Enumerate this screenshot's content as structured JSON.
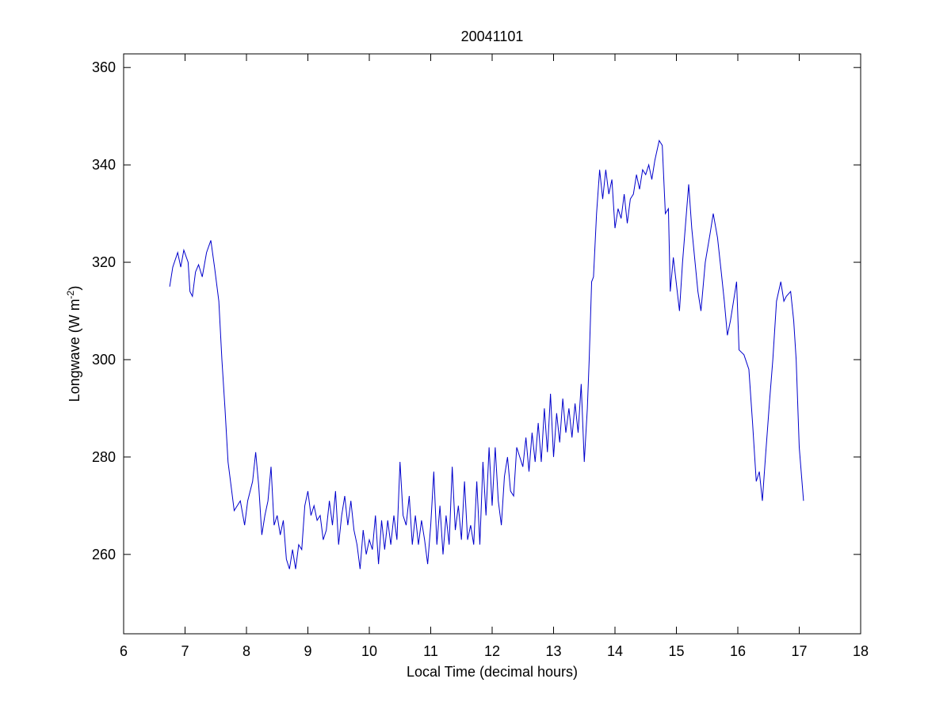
{
  "chart_data": {
    "type": "line",
    "title": "20041101",
    "xlabel": "Local Time (decimal hours)",
    "ylabel": [
      "Longwave (W m",
      "-2",
      ")"
    ],
    "xlim": [
      6,
      18
    ],
    "xticks": [
      6,
      7,
      8,
      9,
      10,
      11,
      12,
      13,
      14,
      15,
      16,
      17,
      18
    ],
    "ylim": [
      243.7,
      362.8
    ],
    "yticks": [
      260,
      280,
      300,
      320,
      340,
      360
    ],
    "grid": false,
    "series": [
      {
        "color": "#0000cc",
        "x": [
          6.75,
          6.8,
          6.88,
          6.93,
          6.98,
          7.05,
          7.08,
          7.12,
          7.17,
          7.22,
          7.28,
          7.35,
          7.42,
          7.48,
          7.55,
          7.6,
          7.65,
          7.7,
          7.75,
          7.8,
          7.85,
          7.9,
          7.97,
          8.02,
          8.1,
          8.15,
          8.2,
          8.25,
          8.3,
          8.35,
          8.4,
          8.45,
          8.5,
          8.55,
          8.6,
          8.65,
          8.7,
          8.75,
          8.8,
          8.85,
          8.9,
          8.95,
          9.0,
          9.05,
          9.1,
          9.15,
          9.2,
          9.25,
          9.3,
          9.35,
          9.4,
          9.45,
          9.5,
          9.55,
          9.6,
          9.65,
          9.7,
          9.75,
          9.8,
          9.85,
          9.9,
          9.95,
          10.0,
          10.05,
          10.1,
          10.15,
          10.2,
          10.25,
          10.3,
          10.35,
          10.4,
          10.45,
          10.5,
          10.55,
          10.6,
          10.65,
          10.7,
          10.75,
          10.8,
          10.85,
          10.9,
          10.95,
          11.0,
          11.05,
          11.1,
          11.15,
          11.2,
          11.25,
          11.3,
          11.35,
          11.4,
          11.45,
          11.5,
          11.55,
          11.6,
          11.65,
          11.7,
          11.75,
          11.8,
          11.85,
          11.9,
          11.95,
          12.0,
          12.05,
          12.1,
          12.15,
          12.2,
          12.25,
          12.3,
          12.35,
          12.4,
          12.45,
          12.5,
          12.55,
          12.6,
          12.65,
          12.7,
          12.75,
          12.8,
          12.85,
          12.9,
          12.95,
          13.0,
          13.05,
          13.1,
          13.15,
          13.2,
          13.25,
          13.3,
          13.35,
          13.4,
          13.45,
          13.5,
          13.55,
          13.58,
          13.62,
          13.65,
          13.7,
          13.75,
          13.8,
          13.85,
          13.9,
          13.95,
          14.0,
          14.05,
          14.1,
          14.15,
          14.2,
          14.25,
          14.3,
          14.35,
          14.4,
          14.45,
          14.5,
          14.55,
          14.6,
          14.65,
          14.72,
          14.77,
          14.82,
          14.87,
          14.9,
          14.95,
          15.05,
          15.1,
          15.2,
          15.25,
          15.35,
          15.4,
          15.47,
          15.55,
          15.6,
          15.67,
          15.73,
          15.78,
          15.83,
          15.88,
          15.93,
          15.98,
          16.02,
          16.1,
          16.18,
          16.24,
          16.3,
          16.35,
          16.4,
          16.45,
          16.52,
          16.57,
          16.63,
          16.7,
          16.75,
          16.79,
          16.86,
          16.91,
          16.95,
          17.0,
          17.07
        ],
        "values": [
          315,
          319,
          322,
          319,
          322.5,
          320,
          314,
          313,
          318,
          319.5,
          317,
          322,
          324.5,
          319,
          312,
          300,
          290,
          279,
          274,
          269,
          270,
          271,
          266,
          271,
          275,
          281,
          274,
          264,
          268,
          271,
          278,
          266,
          268,
          264,
          267,
          259,
          257,
          261,
          257,
          262,
          261,
          270,
          273,
          268,
          270,
          267,
          268,
          263,
          265,
          271,
          266,
          273,
          262,
          268,
          272,
          266,
          271,
          265,
          262,
          257,
          265,
          260,
          263,
          261,
          268,
          258,
          267,
          261,
          267,
          262,
          268,
          263,
          279,
          268,
          266,
          272,
          262,
          268,
          262,
          267,
          263,
          258,
          266,
          277,
          262,
          270,
          260,
          268,
          262,
          278,
          265,
          270,
          263,
          275,
          263,
          266,
          262,
          275,
          262,
          279,
          268,
          282,
          270,
          282,
          271,
          266,
          276,
          280,
          273,
          272,
          282,
          280,
          278,
          284,
          277,
          285,
          279,
          287,
          279,
          290,
          281,
          293,
          280,
          289,
          283,
          292,
          285,
          290,
          284,
          291,
          285,
          295,
          279,
          290,
          300,
          316,
          317,
          330,
          339,
          333,
          339,
          334,
          337,
          327,
          331,
          329,
          334,
          328,
          333,
          334,
          338,
          335,
          339,
          338,
          340,
          337,
          341,
          345,
          344,
          330,
          331,
          314,
          321,
          310,
          320,
          336,
          327,
          314,
          310,
          320,
          326,
          330,
          325,
          318,
          312,
          305,
          308,
          312,
          316,
          302,
          301,
          298,
          287,
          275,
          277,
          271,
          280,
          292,
          300,
          312,
          316,
          312,
          313,
          314,
          308,
          300,
          282,
          271
        ]
      }
    ]
  }
}
